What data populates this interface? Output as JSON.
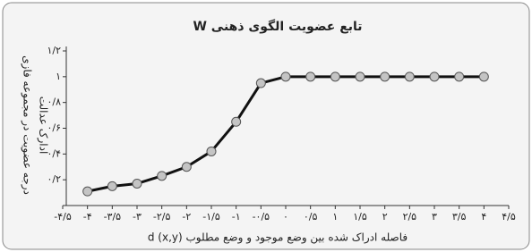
{
  "chart_data": {
    "type": "line",
    "title": "تابع عضویت الگوی ذهنی W",
    "y_label": [
      "درجه عضویت در مجموعه فازی",
      "ادارک عدالت"
    ],
    "x_label": "فاصله ادراک شده بین وضع موجود و وضع مطلوب d (x,y)",
    "x": [
      -4,
      -3.5,
      -3,
      -2.5,
      -2,
      -1.5,
      -1,
      -0.5,
      0,
      0.5,
      1,
      1.5,
      2,
      2.5,
      3,
      3.5,
      4
    ],
    "series": [
      {
        "color": "#111111",
        "marker_color": "#c4c4c4",
        "values": [
          0.11,
          0.15,
          0.17,
          0.23,
          0.3,
          0.42,
          0.65,
          0.95,
          1,
          1,
          1,
          1,
          1,
          1,
          1,
          1,
          1
        ]
      }
    ],
    "xlim": [
      -4.5,
      4.5
    ],
    "xticks": [
      {
        "value": -4.5,
        "label": "-۴/۵"
      },
      {
        "value": -4,
        "label": "-۴"
      },
      {
        "value": -3.5,
        "label": "-۳/۵"
      },
      {
        "value": -3,
        "label": "-۳"
      },
      {
        "value": -2.5,
        "label": "-۲/۵"
      },
      {
        "value": -2,
        "label": "-۲"
      },
      {
        "value": -1.5,
        "label": "-۱/۵"
      },
      {
        "value": -1,
        "label": "-۱"
      },
      {
        "value": -0.5,
        "label": "-۰/۵"
      },
      {
        "value": 0,
        "label": "۰"
      },
      {
        "value": 0.5,
        "label": "۰/۵"
      },
      {
        "value": 1,
        "label": "۱"
      },
      {
        "value": 1.5,
        "label": "۱/۵"
      },
      {
        "value": 2,
        "label": "۲"
      },
      {
        "value": 2.5,
        "label": "۲/۵"
      },
      {
        "value": 3,
        "label": "۳"
      },
      {
        "value": 3.5,
        "label": "۳/۵"
      },
      {
        "value": 4,
        "label": "۴"
      },
      {
        "value": 4.5,
        "label": "۴/۵"
      }
    ],
    "ylim": [
      0,
      1.2
    ],
    "yticks": [
      {
        "value": 0.2,
        "label": "۰/۲"
      },
      {
        "value": 0.4,
        "label": "۰/۴"
      },
      {
        "value": 0.6,
        "label": "۰/۶"
      },
      {
        "value": 0.8,
        "label": "۰/۸"
      },
      {
        "value": 1,
        "label": "۱"
      },
      {
        "value": 1.2,
        "label": "۱/۲"
      }
    ]
  }
}
